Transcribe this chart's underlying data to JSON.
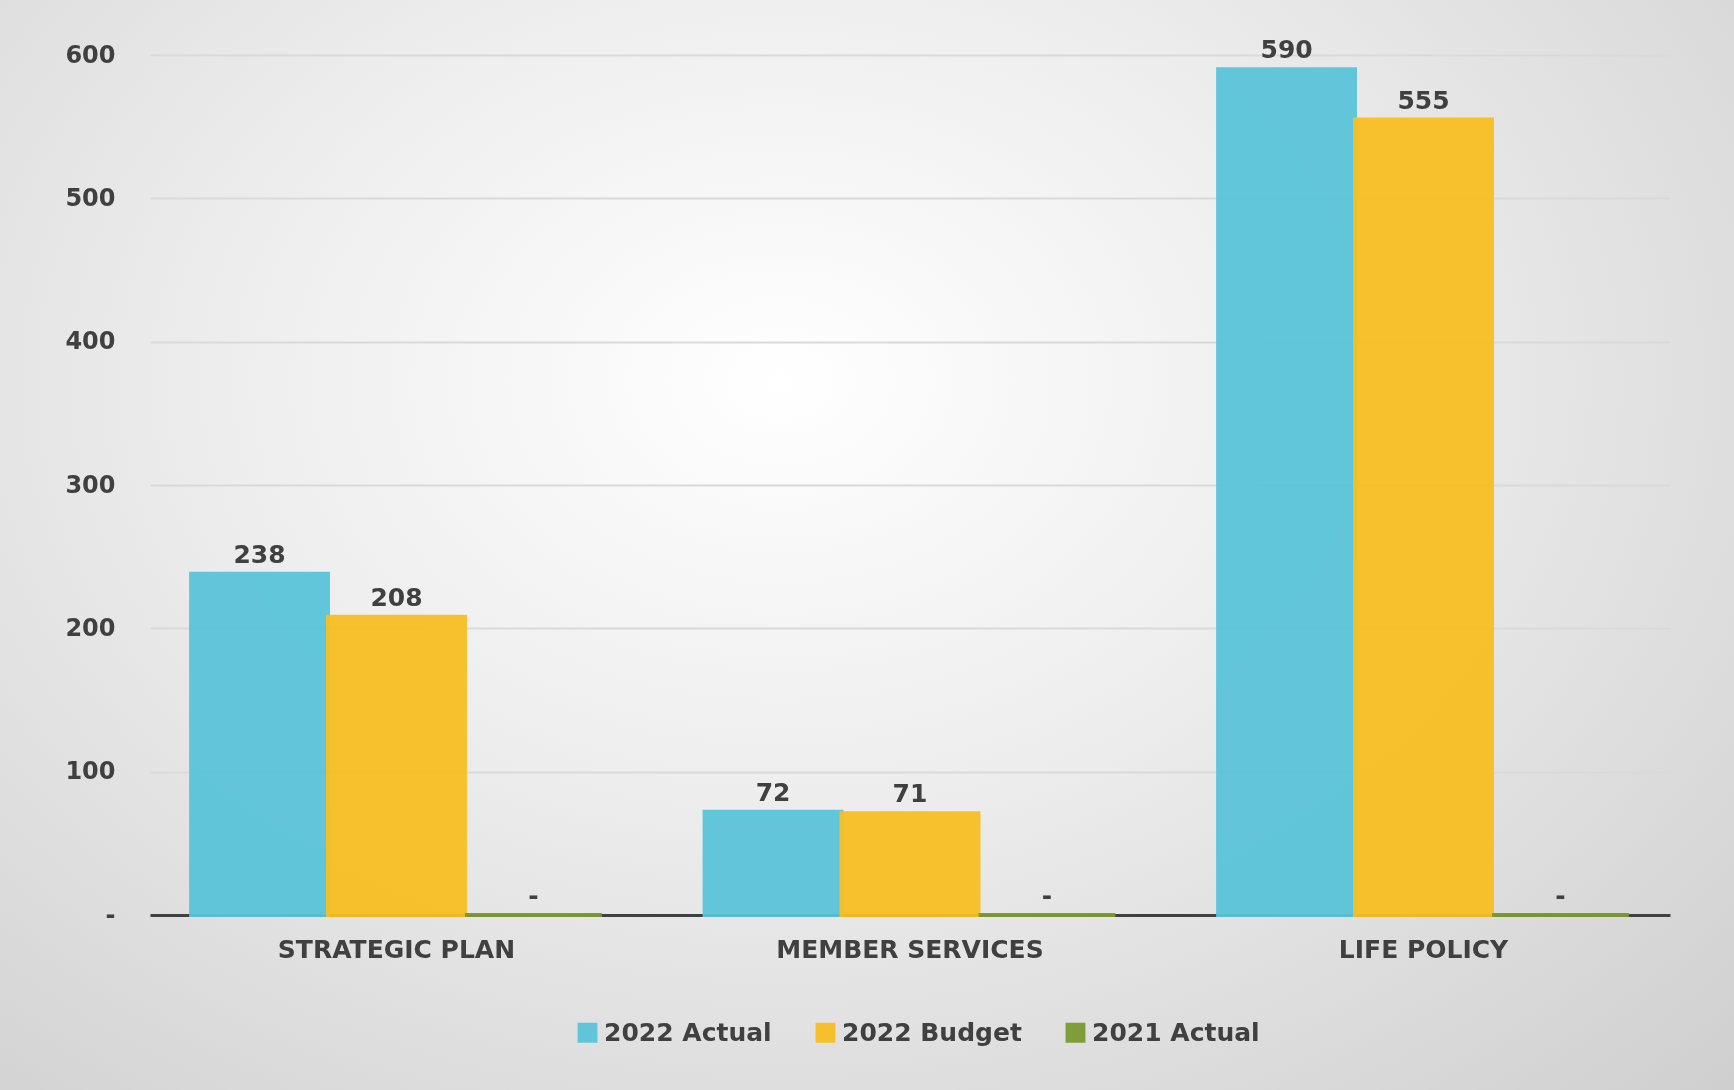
{
  "chart_data": {
    "type": "bar",
    "categories": [
      "STRATEGIC PLAN",
      "MEMBER SERVICES",
      "LIFE POLICY"
    ],
    "series": [
      {
        "name": "2022 Actual",
        "color": "#5bc4da",
        "values": [
          238,
          72,
          590
        ],
        "value_labels": [
          "238",
          "72",
          "590"
        ]
      },
      {
        "name": "2022 Budget",
        "color": "#f8bf24",
        "values": [
          208,
          71,
          555
        ],
        "value_labels": [
          "208",
          "71",
          "555"
        ]
      },
      {
        "name": "2021 Actual",
        "color": "#7a9a30",
        "values": [
          0,
          0,
          0
        ],
        "value_labels": [
          "-",
          "-",
          "-"
        ]
      }
    ],
    "ylim": [
      0,
      600
    ],
    "yticks": [
      {
        "value": 0,
        "label": "-"
      },
      100,
      200,
      300,
      400,
      500,
      600
    ],
    "grid": "y",
    "legend": "bottom"
  }
}
